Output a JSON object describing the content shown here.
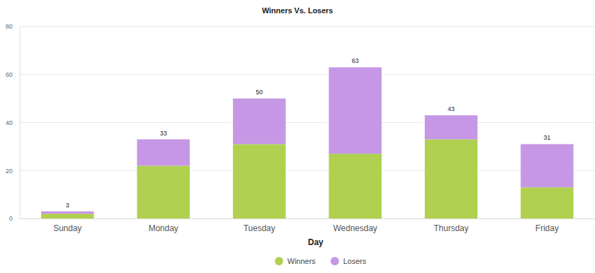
{
  "chart_data": {
    "type": "bar",
    "title": "Winners Vs. Losers",
    "xlabel": "Day",
    "categories": [
      "Sunday",
      "Monday",
      "Tuesday",
      "Wednesday",
      "Thursday",
      "Friday"
    ],
    "series": [
      {
        "name": "Winners",
        "color": "#afd14f",
        "values": [
          2,
          22,
          31,
          27,
          33,
          13
        ]
      },
      {
        "name": "Losers",
        "color": "#c597e5",
        "values": [
          1,
          11,
          19,
          36,
          10,
          18
        ]
      }
    ],
    "totals": [
      3,
      33,
      50,
      63,
      43,
      31
    ],
    "ylim": [
      0,
      80
    ],
    "yticks": [
      0,
      20,
      40,
      60,
      80
    ],
    "stacked": true,
    "grid": true,
    "data_labels": true,
    "legend": "bottom"
  }
}
